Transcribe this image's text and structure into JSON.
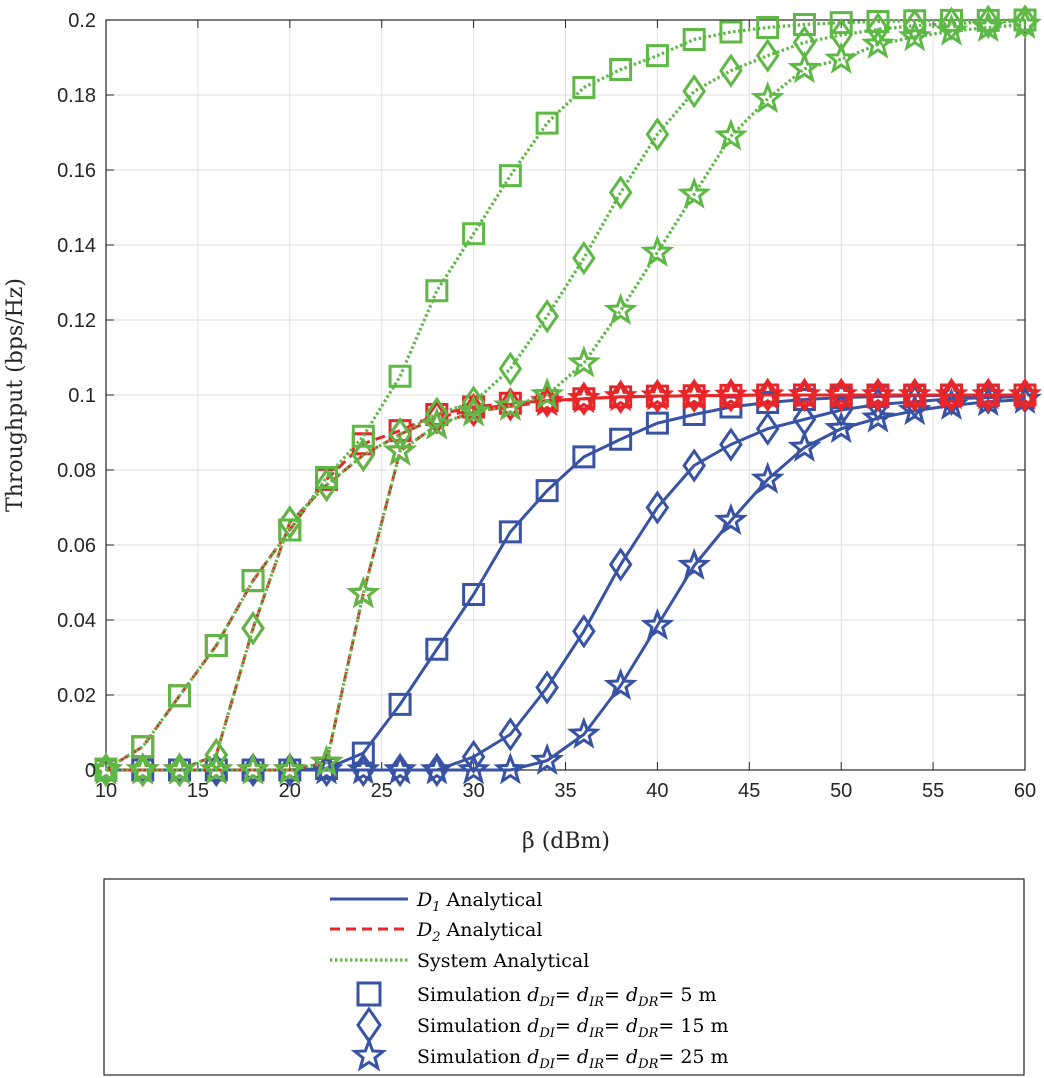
{
  "chart_data": {
    "type": "line",
    "title": "",
    "xlabel": "β (dBm)",
    "ylabel": "Throughput (bps/Hz)",
    "xlim": [
      10,
      60
    ],
    "ylim": [
      0,
      0.2
    ],
    "xticks": [
      "10",
      "15",
      "20",
      "25",
      "30",
      "35",
      "40",
      "45",
      "50",
      "55",
      "60"
    ],
    "yticks": [
      "0",
      "0.02",
      "0.04",
      "0.06",
      "0.08",
      "0.1",
      "0.12",
      "0.14",
      "0.16",
      "0.18",
      "0.2"
    ],
    "grid": true,
    "legend_position": "below",
    "x": [
      10,
      12,
      14,
      16,
      18,
      20,
      22,
      24,
      26,
      28,
      30,
      32,
      34,
      36,
      38,
      40,
      42,
      44,
      46,
      48,
      50,
      52,
      54,
      56,
      58,
      60
    ],
    "colors": {
      "D1": "#3953a4",
      "D2": "#e8262a",
      "system": "#5db845"
    },
    "series": [
      {
        "name": "D1 d=5",
        "role": "D1",
        "marker": "square",
        "values": [
          0,
          0,
          0,
          0,
          0,
          0,
          0.0004,
          0.0045,
          0.0175,
          0.0322,
          0.0468,
          0.0635,
          0.0745,
          0.0835,
          0.0882,
          0.0925,
          0.0948,
          0.0968,
          0.098,
          0.0988,
          0.0993,
          0.0996,
          0.0998,
          0.0999,
          0.0999,
          0.1
        ]
      },
      {
        "name": "D1 d=15",
        "role": "D1",
        "marker": "diamond",
        "values": [
          0,
          0,
          0,
          0,
          0,
          0,
          0,
          0,
          0,
          0,
          0.0035,
          0.0095,
          0.022,
          0.037,
          0.0548,
          0.07,
          0.0812,
          0.0868,
          0.091,
          0.0935,
          0.096,
          0.0975,
          0.0982,
          0.099,
          0.0993,
          0.0996
        ]
      },
      {
        "name": "D1 d=25",
        "role": "D1",
        "marker": "star",
        "values": [
          0,
          0,
          0,
          0,
          0,
          0,
          0,
          0,
          0,
          0,
          0,
          0,
          0.0025,
          0.0095,
          0.0225,
          0.0385,
          0.0545,
          0.0665,
          0.0775,
          0.086,
          0.091,
          0.0938,
          0.0958,
          0.0972,
          0.0982,
          0.0988
        ]
      },
      {
        "name": "D2 d=5",
        "role": "D2",
        "marker": "square",
        "values": [
          0.0002,
          0.0062,
          0.0198,
          0.0332,
          0.0505,
          0.064,
          0.0775,
          0.087,
          0.0905,
          0.0948,
          0.0968,
          0.0978,
          0.0985,
          0.099,
          0.0995,
          0.0997,
          0.0998,
          0.0999,
          0.1,
          0.1,
          0.1,
          0.1,
          0.1,
          0.1,
          0.1,
          0.1
        ]
      },
      {
        "name": "D2 d=15",
        "role": "D2",
        "marker": "diamond",
        "values": [
          0,
          0,
          0,
          0.004,
          0.0378,
          0.066,
          0.076,
          0.084,
          0.0895,
          0.094,
          0.096,
          0.0975,
          0.0985,
          0.099,
          0.0995,
          0.0997,
          0.0998,
          0.0999,
          0.1,
          0.1,
          0.1,
          0.1,
          0.1,
          0.1,
          0.1,
          0.1
        ]
      },
      {
        "name": "D2 d=25",
        "role": "D2",
        "marker": "star",
        "values": [
          0,
          0,
          0,
          0,
          0,
          0,
          0.002,
          0.047,
          0.085,
          0.092,
          0.0955,
          0.097,
          0.0982,
          0.099,
          0.0995,
          0.0997,
          0.0998,
          0.0999,
          0.1,
          0.1,
          0.1,
          0.1,
          0.1,
          0.1,
          0.1,
          0.1
        ]
      },
      {
        "name": "System d=5",
        "role": "system",
        "marker": "square",
        "values": [
          0.0002,
          0.0062,
          0.0198,
          0.0332,
          0.0505,
          0.064,
          0.078,
          0.089,
          0.105,
          0.1278,
          0.143,
          0.1585,
          0.1725,
          0.182,
          0.1868,
          0.1905,
          0.1948,
          0.1968,
          0.198,
          0.1988,
          0.1993,
          0.1996,
          0.1998,
          0.1999,
          0.1999,
          0.2
        ]
      },
      {
        "name": "System d=15",
        "role": "system",
        "marker": "diamond",
        "values": [
          0,
          0,
          0,
          0.004,
          0.0378,
          0.066,
          0.076,
          0.084,
          0.0895,
          0.095,
          0.098,
          0.107,
          0.121,
          0.1365,
          0.154,
          0.1695,
          0.181,
          0.1865,
          0.1905,
          0.194,
          0.196,
          0.1975,
          0.1985,
          0.199,
          0.1995,
          0.1996
        ]
      },
      {
        "name": "System d=25",
        "role": "system",
        "marker": "star",
        "values": [
          0,
          0,
          0,
          0,
          0,
          0,
          0.002,
          0.047,
          0.085,
          0.092,
          0.0955,
          0.097,
          0.1,
          0.1085,
          0.1225,
          0.138,
          0.1535,
          0.169,
          0.179,
          0.187,
          0.1895,
          0.1935,
          0.1955,
          0.197,
          0.198,
          0.1988
        ]
      }
    ],
    "legend": [
      {
        "id": "d1",
        "kind": "line",
        "role": "D1",
        "label": "D",
        "sub": "1",
        "suffix": " Analytical"
      },
      {
        "id": "d2",
        "kind": "line",
        "role": "D2",
        "label": "D",
        "sub": "2",
        "suffix": " Analytical"
      },
      {
        "id": "sys",
        "kind": "line",
        "role": "system",
        "label": "System Analytical"
      },
      {
        "id": "sim5",
        "kind": "marker",
        "marker": "square",
        "prefix": "Simulation ",
        "suffix": "= 5 m"
      },
      {
        "id": "sim15",
        "kind": "marker",
        "marker": "diamond",
        "prefix": "Simulation ",
        "suffix": "= 15 m"
      },
      {
        "id": "sim25",
        "kind": "marker",
        "marker": "star",
        "prefix": "Simulation ",
        "suffix": "= 25 m"
      }
    ],
    "legend_symbols": {
      "d": "d",
      "DI": "DI",
      "IR": "IR",
      "DR": "DR",
      "eq": "= "
    }
  }
}
